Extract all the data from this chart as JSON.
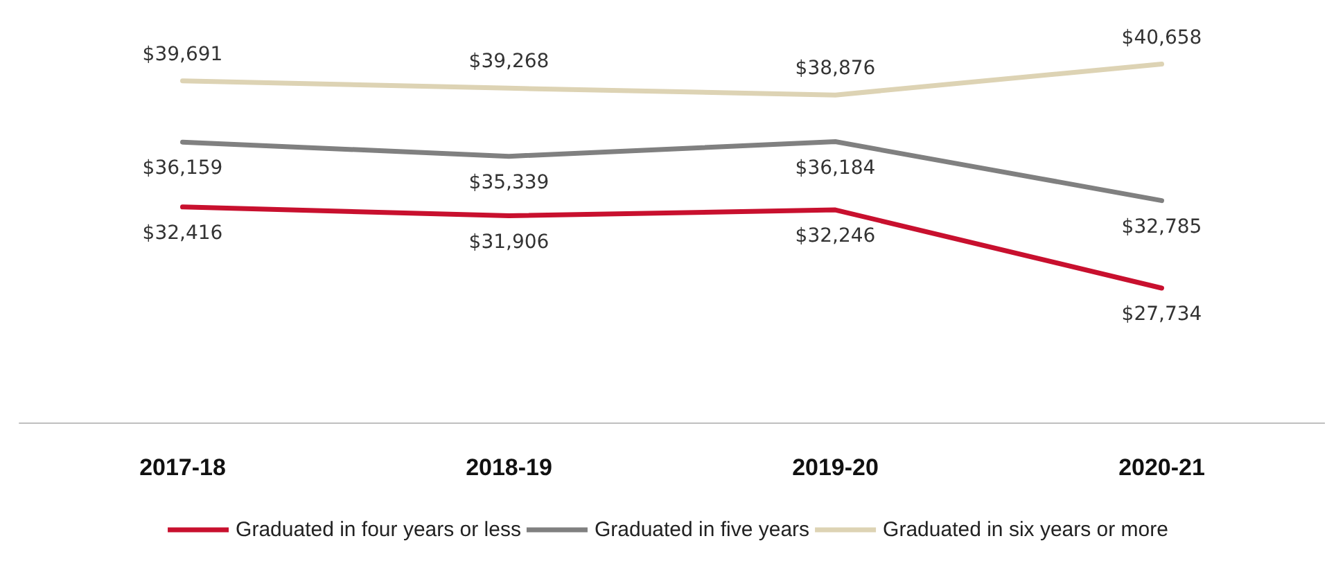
{
  "chart_data": {
    "type": "line",
    "categories": [
      "2017-18",
      "2018-19",
      "2019-20",
      "2020-21"
    ],
    "series": [
      {
        "name": "Graduated in four years or less",
        "color": "#c8102e",
        "values": [
          32416,
          31906,
          32246,
          27734
        ],
        "value_labels": [
          "$32,416",
          "$31,906",
          "$32,246",
          "$27,734"
        ]
      },
      {
        "name": "Graduated in five years",
        "color": "#808080",
        "values": [
          36159,
          35339,
          36184,
          32785
        ],
        "value_labels": [
          "$36,159",
          "$35,339",
          "$36,184",
          "$32,785"
        ]
      },
      {
        "name": "Graduated in six years or more",
        "color": "#ddd3b4",
        "values": [
          39691,
          39268,
          38876,
          40658
        ],
        "value_labels": [
          "$39,691",
          "$39,268",
          "$38,876",
          "$40,658"
        ]
      }
    ],
    "legend": "bottom",
    "grid": false,
    "marker": "none",
    "line_style": "solid",
    "tick_labels": "x"
  }
}
